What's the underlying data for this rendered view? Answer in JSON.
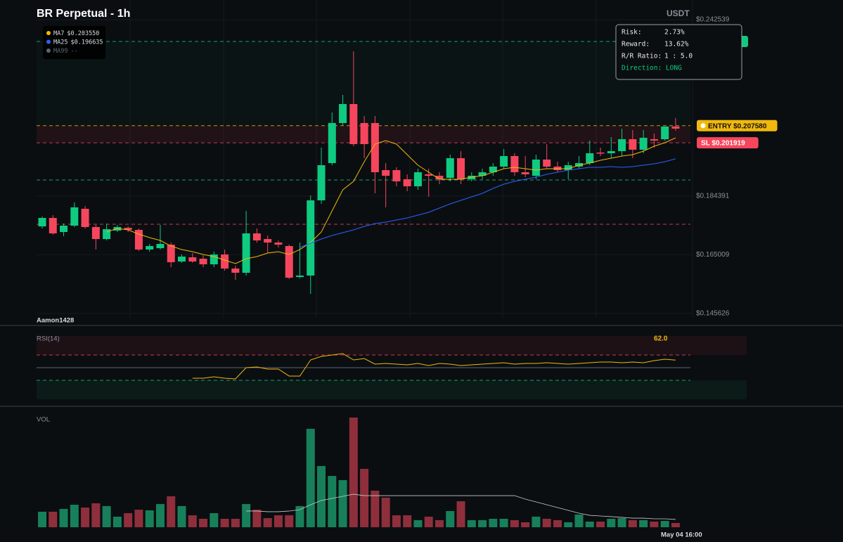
{
  "header": {
    "title": "BR Perpetual - 1h",
    "quote": "USDT",
    "watermark": "Aamon1428"
  },
  "chart_data": [
    {
      "type": "candlestick",
      "open": [
        0.17435,
        0.17713,
        0.17249,
        0.17458,
        0.18015,
        0.17412,
        0.17017,
        0.17296,
        0.17388,
        0.17319,
        0.1667,
        0.16716,
        0.16832,
        0.16275,
        0.16414,
        0.16368,
        0.16183,
        0.16507,
        0.16043,
        0.15904,
        0.17203,
        0.17017,
        0.16901,
        0.16785,
        0.15765,
        0.15812,
        0.18293,
        0.19522,
        0.20844,
        0.2147,
        0.20844,
        0.20844,
        0.1929,
        0.1929,
        0.18989,
        0.18757,
        0.19151,
        0.19104,
        0.19035,
        0.19684,
        0.18989,
        0.19104,
        0.1922,
        0.19406,
        0.19754,
        0.1922,
        0.19104,
        0.19638,
        0.19406,
        0.1929,
        0.19406,
        0.19522,
        0.1987,
        0.19847,
        0.19916,
        0.2031,
        0.19963,
        0.2031,
        0.2031,
        0.20728
      ],
      "high": [
        0.17759,
        0.17806,
        0.17528,
        0.18223,
        0.18107,
        0.17481,
        0.17528,
        0.17481,
        0.17435,
        0.17365,
        0.16855,
        0.17481,
        0.16901,
        0.16507,
        0.16554,
        0.16484,
        0.166,
        0.1667,
        0.16136,
        0.17945,
        0.17365,
        0.17133,
        0.16971,
        0.16832,
        0.16901,
        0.18455,
        0.20032,
        0.21192,
        0.21771,
        0.23209,
        0.21076,
        0.21076,
        0.19522,
        0.19383,
        0.19151,
        0.19336,
        0.19336,
        0.1922,
        0.198,
        0.19916,
        0.1922,
        0.19336,
        0.19522,
        0.19986,
        0.19847,
        0.19754,
        0.198,
        0.20148,
        0.19568,
        0.19568,
        0.19754,
        0.20264,
        0.20032,
        0.2038,
        0.20658,
        0.20612,
        0.20612,
        0.20496,
        0.20728,
        0.21006
      ],
      "low": [
        0.17365,
        0.17157,
        0.1711,
        0.17412,
        0.17365,
        0.1667,
        0.16971,
        0.17249,
        0.17249,
        0.16623,
        0.166,
        0.1667,
        0.1609,
        0.16229,
        0.16229,
        0.1609,
        0.1609,
        0.15974,
        0.15672,
        0.15812,
        0.16901,
        0.16554,
        0.16739,
        0.15696,
        0.15719,
        0.15209,
        0.18177,
        0.19452,
        0.20774,
        0.20078,
        0.19684,
        0.18525,
        0.18061,
        0.18757,
        0.18594,
        0.18641,
        0.18409,
        0.18826,
        0.18919,
        0.18826,
        0.18919,
        0.18989,
        0.19104,
        0.19336,
        0.19104,
        0.19058,
        0.18989,
        0.19336,
        0.1922,
        0.18989,
        0.19336,
        0.19452,
        0.19754,
        0.19684,
        0.19754,
        0.19684,
        0.19847,
        0.20032,
        0.20264,
        0.20589
      ],
      "close": [
        0.17713,
        0.17203,
        0.17458,
        0.18061,
        0.17412,
        0.17017,
        0.17342,
        0.17412,
        0.17319,
        0.1667,
        0.16785,
        0.16855,
        0.16252,
        0.16438,
        0.16275,
        0.16183,
        0.16507,
        0.16043,
        0.15904,
        0.17203,
        0.16971,
        0.16901,
        0.16832,
        0.15742,
        0.15812,
        0.18293,
        0.19452,
        0.20844,
        0.2147,
        0.20148,
        0.20148,
        0.1922,
        0.19104,
        0.18919,
        0.18757,
        0.1922,
        0.19104,
        0.18989,
        0.19684,
        0.18989,
        0.19104,
        0.1922,
        0.19406,
        0.19754,
        0.1922,
        0.19151,
        0.19638,
        0.19406,
        0.1929,
        0.19452,
        0.19522,
        0.19847,
        0.19847,
        0.19916,
        0.2031,
        0.19963,
        0.20357,
        0.20264,
        0.20728,
        0.20658
      ],
      "colors": {
        "up": "#0ecb81",
        "down": "#f6465d"
      },
      "ylim": [
        0.1442,
        0.2467
      ],
      "yticks": [
        {
          "value": 0.145626,
          "label": "$0.145626"
        },
        {
          "value": 0.165009,
          "label": "$0.165009"
        },
        {
          "value": 0.184391,
          "label": "$0.184391"
        },
        {
          "value": 0.242539,
          "label": "$0.242539"
        }
      ],
      "grid": true,
      "series": [
        {
          "name": "MA7",
          "color": "#f0b90b",
          "last_label": "$0.203550",
          "values": [
            null,
            null,
            null,
            null,
            null,
            null,
            0.17249,
            0.17365,
            0.17319,
            0.1718,
            0.17064,
            0.16971,
            0.16785,
            0.1667,
            0.166,
            0.16507,
            0.16438,
            0.16322,
            0.16206,
            0.16368,
            0.16438,
            0.16554,
            0.166,
            0.16507,
            0.1667,
            0.16901,
            0.17249,
            0.17945,
            0.18641,
            0.18919,
            0.19568,
            0.20148,
            0.20264,
            0.20148,
            0.198,
            0.19452,
            0.1922,
            0.18989,
            0.18989,
            0.18989,
            0.19058,
            0.19104,
            0.1922,
            0.19336,
            0.19383,
            0.19336,
            0.1929,
            0.19336,
            0.19336,
            0.19336,
            0.19452,
            0.19522,
            0.19615,
            0.19684,
            0.19754,
            0.198,
            0.19916,
            0.20078,
            0.20194,
            0.20355
          ]
        },
        {
          "name": "MA25",
          "color": "#2962ff",
          "last_label": "$0.196635",
          "values": [
            null,
            null,
            null,
            null,
            null,
            null,
            null,
            null,
            null,
            null,
            null,
            null,
            null,
            null,
            null,
            null,
            null,
            null,
            null,
            null,
            null,
            null,
            null,
            null,
            0.16739,
            0.16878,
            0.17017,
            0.17133,
            0.17226,
            0.17319,
            0.17435,
            0.17528,
            0.17574,
            0.17644,
            0.17713,
            0.17806,
            0.17899,
            0.18038,
            0.18177,
            0.18293,
            0.18409,
            0.18525,
            0.18687,
            0.18826,
            0.18919,
            0.18989,
            0.19058,
            0.19151,
            0.1922,
            0.1929,
            0.19336,
            0.19383,
            0.19383,
            0.19406,
            0.19383,
            0.19406,
            0.19452,
            0.19499,
            0.19568,
            0.196635
          ]
        },
        {
          "name": "MA99",
          "color": "#5e6673",
          "last_label": "--",
          "values": [
            null,
            null,
            null,
            null,
            null,
            null,
            null,
            null,
            null,
            null,
            null,
            null,
            null,
            null,
            null,
            null,
            null,
            null,
            null,
            null,
            null,
            null,
            null,
            null,
            null,
            null,
            null,
            null,
            null,
            null,
            null,
            null,
            null,
            null,
            null,
            null,
            null,
            null,
            null,
            null,
            null,
            null,
            null,
            null,
            null,
            null,
            null,
            null,
            null,
            null,
            null,
            null,
            null,
            null,
            null,
            null,
            null,
            null,
            null,
            null
          ]
        }
      ],
      "levels": [
        {
          "value": 0.23534,
          "color": "#0ecb81"
        },
        {
          "value": 0.20758,
          "color": "#f0b90b",
          "label": "ENTRY $0.207580"
        },
        {
          "value": 0.201919,
          "color": "#f6465d",
          "label": "SL $0.201919"
        },
        {
          "value": 0.18966,
          "color": "#0ecb81"
        },
        {
          "value": 0.17505,
          "color": "#f6465d"
        }
      ]
    },
    {
      "type": "line",
      "title": "RSI(14)",
      "color": "#f0b90b",
      "last_label": "62.0",
      "ylim": [
        0,
        100
      ],
      "levels": [
        {
          "value": 70,
          "color": "#f6465d"
        },
        {
          "value": 50,
          "color": "#5e6673"
        },
        {
          "value": 30,
          "color": "#0ecb81"
        }
      ],
      "values": [
        null,
        null,
        null,
        null,
        null,
        null,
        null,
        null,
        null,
        null,
        null,
        null,
        null,
        null,
        33.3,
        33.3,
        35.6,
        33.3,
        32.2,
        50,
        51.1,
        47.8,
        47.8,
        36.7,
        36.7,
        62.2,
        67.8,
        70,
        72.2,
        62.2,
        64.4,
        55.6,
        56.7,
        55.6,
        54.4,
        56.7,
        53.3,
        56.7,
        55.6,
        53.3,
        54.4,
        55.6,
        56.7,
        57.8,
        55.6,
        56.7,
        56.7,
        57.8,
        56.7,
        55.6,
        56.7,
        57.8,
        58.9,
        58.9,
        57.8,
        58.9,
        57.8,
        61.1,
        63.3,
        62
      ]
    },
    {
      "type": "bar",
      "title": "VOL",
      "x_label": "May 04 16:00",
      "ylim": [
        0,
        100
      ],
      "colors": {
        "up": "#17805a",
        "down": "#8f2f3c"
      },
      "values": [
        13.8,
        13.8,
        16.3,
        20,
        17.5,
        21.3,
        18.8,
        9.4,
        12.5,
        15.6,
        15,
        20.6,
        27.5,
        18.8,
        10.6,
        7.5,
        12.5,
        7.5,
        7.5,
        20.6,
        15.6,
        8.1,
        10.6,
        10.6,
        18.8,
        87.5,
        54.4,
        45.6,
        41.9,
        97.5,
        51.9,
        32.5,
        26.3,
        10.6,
        10.6,
        6.3,
        9.4,
        6.3,
        14.4,
        23.1,
        6.3,
        6.3,
        7.5,
        7.5,
        6.3,
        4.4,
        9.4,
        7.5,
        6.3,
        4.4,
        11.3,
        5,
        5,
        7.5,
        8.1,
        6.3,
        6.3,
        5,
        5.6,
        3.8
      ],
      "ma": {
        "color": "#c8c8c8",
        "values": [
          null,
          null,
          null,
          null,
          null,
          null,
          null,
          null,
          null,
          null,
          null,
          null,
          null,
          null,
          null,
          null,
          null,
          null,
          null,
          14.4,
          14.4,
          13.8,
          13.8,
          14.4,
          15.6,
          20,
          23.8,
          25.6,
          27.5,
          29.4,
          28.1,
          28.1,
          28.1,
          28.1,
          28.1,
          28.1,
          28.1,
          28.1,
          28.1,
          28.1,
          28.1,
          28.1,
          28.1,
          28.1,
          28.1,
          25,
          22.5,
          20,
          17.5,
          15,
          12.5,
          10.6,
          10,
          9.4,
          8.8,
          8.1,
          8.1,
          7.5,
          7.5,
          6.9
        ]
      }
    }
  ],
  "risk_panel": {
    "rows": [
      [
        "Risk:",
        "2.73%"
      ],
      [
        "Reward:",
        "13.62%"
      ],
      [
        "R/R Ratio:",
        "1 : 5.0"
      ]
    ],
    "direction": "Direction: LONG"
  }
}
